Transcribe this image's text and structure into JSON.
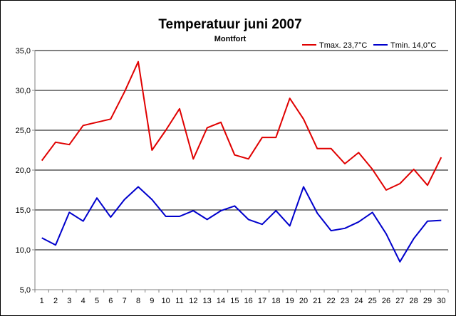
{
  "chart_data": {
    "type": "line",
    "title": "Temperatuur juni 2007",
    "subtitle": "Montfort",
    "categories": [
      "1",
      "2",
      "3",
      "4",
      "5",
      "6",
      "7",
      "8",
      "9",
      "10",
      "11",
      "12",
      "13",
      "14",
      "15",
      "16",
      "17",
      "18",
      "19",
      "20",
      "21",
      "22",
      "23",
      "24",
      "25",
      "26",
      "27",
      "28",
      "29",
      "30"
    ],
    "ylim": [
      5,
      35
    ],
    "yticks": [
      "5,0",
      "10,0",
      "15,0",
      "20,0",
      "25,0",
      "30,0",
      "35,0"
    ],
    "ytick_values": [
      5,
      10,
      15,
      20,
      25,
      30,
      35
    ],
    "grid": true,
    "legend_position": "top-right",
    "series": [
      {
        "name": "Tmax. 23,7°C",
        "color": "#e00000",
        "values": [
          21.2,
          23.5,
          23.2,
          25.6,
          26.0,
          26.4,
          29.8,
          33.6,
          22.5,
          25.0,
          27.7,
          21.4,
          25.3,
          26.0,
          21.9,
          21.4,
          24.1,
          24.1,
          29.0,
          26.4,
          22.7,
          22.7,
          20.8,
          22.2,
          20.1,
          17.5,
          18.3,
          20.1,
          18.1,
          21.6
        ]
      },
      {
        "name": "Tmin. 14,0°C",
        "color": "#0000cc",
        "values": [
          11.5,
          10.6,
          14.7,
          13.6,
          16.5,
          14.1,
          16.3,
          17.9,
          16.3,
          14.2,
          14.2,
          14.9,
          13.8,
          14.9,
          15.5,
          13.8,
          13.2,
          14.9,
          13.0,
          17.9,
          14.6,
          12.4,
          12.7,
          13.5,
          14.7,
          12.0,
          8.5,
          11.4,
          13.6,
          13.7
        ]
      }
    ]
  }
}
